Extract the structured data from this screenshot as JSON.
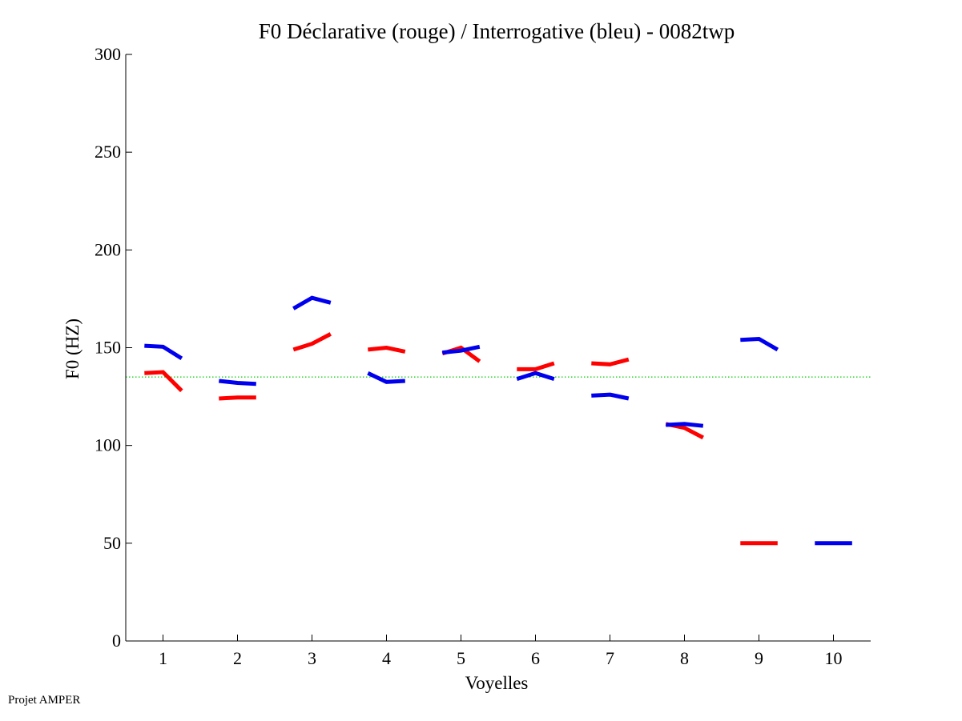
{
  "chart_data": {
    "type": "line",
    "title": "F0 Déclarative (rouge) / Interrogative (bleu) - 0082twp",
    "xlabel": "Voyelles",
    "ylabel": "F0 (HZ)",
    "ylim": [
      0,
      300
    ],
    "yticks": [
      0,
      50,
      100,
      150,
      200,
      250,
      300
    ],
    "xlim": [
      0.5,
      10.5
    ],
    "xticks": [
      1,
      2,
      3,
      4,
      5,
      6,
      7,
      8,
      9,
      10
    ],
    "grid": false,
    "reference_line": {
      "value": 135,
      "color": "#00cc00",
      "style": "dotted"
    },
    "series": [
      {
        "color": "#ff0000",
        "segments": [
          {
            "vowel": 1,
            "values": [
              137,
              137.5,
              128
            ]
          },
          {
            "vowel": 2,
            "values": [
              124,
              124.5,
              124.5
            ]
          },
          {
            "vowel": 3,
            "values": [
              149,
              152,
              157
            ]
          },
          {
            "vowel": 4,
            "values": [
              149,
              150,
              148
            ]
          },
          {
            "vowel": 5,
            "values": [
              147,
              150,
              143
            ]
          },
          {
            "vowel": 6,
            "values": [
              139,
              139,
              142
            ]
          },
          {
            "vowel": 7,
            "values": [
              142,
              141.5,
              144
            ]
          },
          {
            "vowel": 8,
            "values": [
              111,
              109,
              104
            ]
          },
          {
            "vowel": 9,
            "values": [
              50,
              50,
              50
            ]
          }
        ]
      },
      {
        "color": "#0000ee",
        "segments": [
          {
            "vowel": 1,
            "values": [
              151,
              150.5,
              144.5
            ]
          },
          {
            "vowel": 2,
            "values": [
              133,
              132,
              131.5
            ]
          },
          {
            "vowel": 3,
            "values": [
              170,
              175.5,
              173
            ]
          },
          {
            "vowel": 4,
            "values": [
              137,
              132.5,
              133
            ]
          },
          {
            "vowel": 5,
            "values": [
              147.5,
              148.5,
              150.5
            ]
          },
          {
            "vowel": 6,
            "values": [
              134,
              137,
              134
            ]
          },
          {
            "vowel": 7,
            "values": [
              125.5,
              126,
              124
            ]
          },
          {
            "vowel": 8,
            "values": [
              110.5,
              111,
              110
            ]
          },
          {
            "vowel": 9,
            "values": [
              154,
              154.5,
              149
            ]
          },
          {
            "vowel": 10,
            "values": [
              50,
              50,
              50
            ]
          }
        ]
      }
    ]
  },
  "footer": {
    "text": "Projet AMPER"
  }
}
